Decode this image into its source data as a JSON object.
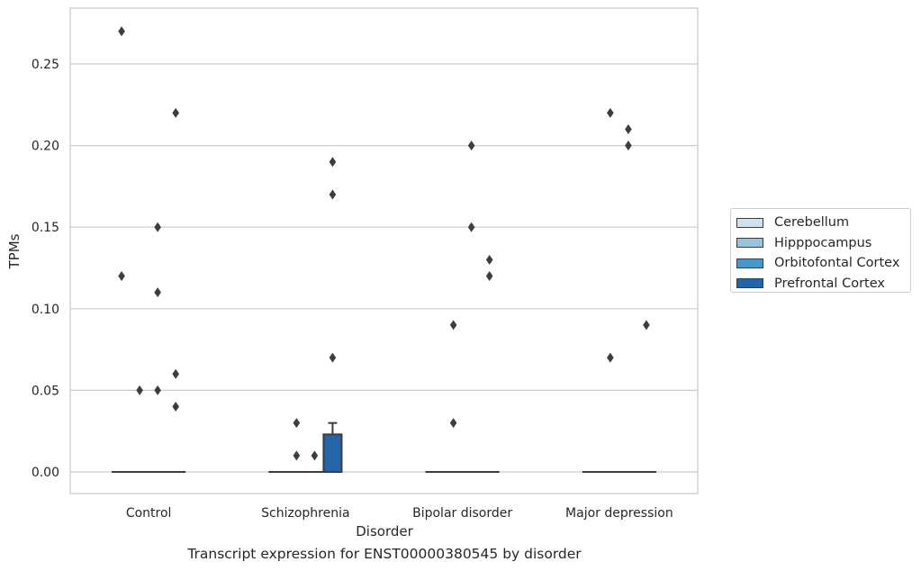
{
  "caption": "Transcript expression for ENST00000380545 by disorder",
  "chart_data": {
    "type": "box",
    "xlabel": "Disorder",
    "ylabel": "TPMs",
    "categories": [
      "Control",
      "Schizophrenia",
      "Bipolar disorder",
      "Major depression"
    ],
    "ylim": [
      -0.0125,
      0.2835
    ],
    "yticks": [
      "0.00",
      "0.05",
      "0.10",
      "0.15",
      "0.20",
      "0.25"
    ],
    "grid": true,
    "legend_position": "right",
    "series": [
      {
        "name": "Cerebellum",
        "color": "#d0e1f2",
        "boxes": [
          {
            "q1": 0,
            "median": 0,
            "q3": 0,
            "whisker_low": 0,
            "whisker_high": 0,
            "outliers": [
              0.27,
              0.12
            ]
          },
          {
            "q1": 0,
            "median": 0,
            "q3": 0,
            "whisker_low": 0,
            "whisker_high": 0,
            "outliers": []
          },
          {
            "q1": 0,
            "median": 0,
            "q3": 0,
            "whisker_low": 0,
            "whisker_high": 0,
            "outliers": []
          },
          {
            "q1": 0,
            "median": 0,
            "q3": 0,
            "whisker_low": 0,
            "whisker_high": 0,
            "outliers": []
          }
        ]
      },
      {
        "name": "Hipppocampus",
        "color": "#94c4df",
        "boxes": [
          {
            "q1": 0,
            "median": 0,
            "q3": 0,
            "whisker_low": 0,
            "whisker_high": 0,
            "outliers": [
              0.05
            ]
          },
          {
            "q1": 0,
            "median": 0,
            "q3": 0,
            "whisker_low": 0,
            "whisker_high": 0,
            "outliers": [
              0.03,
              0.01
            ]
          },
          {
            "q1": 0,
            "median": 0,
            "q3": 0,
            "whisker_low": 0,
            "whisker_high": 0,
            "outliers": [
              0.09,
              0.03
            ]
          },
          {
            "q1": 0,
            "median": 0,
            "q3": 0,
            "whisker_low": 0,
            "whisker_high": 0,
            "outliers": [
              0.22,
              0.07
            ]
          }
        ]
      },
      {
        "name": "Orbitofontal Cortex",
        "color": "#4a98c9",
        "boxes": [
          {
            "q1": 0,
            "median": 0,
            "q3": 0,
            "whisker_low": 0,
            "whisker_high": 0,
            "outliers": [
              0.15,
              0.11,
              0.05
            ]
          },
          {
            "q1": 0,
            "median": 0,
            "q3": 0,
            "whisker_low": 0,
            "whisker_high": 0,
            "outliers": [
              0.01
            ]
          },
          {
            "q1": 0,
            "median": 0,
            "q3": 0,
            "whisker_low": 0,
            "whisker_high": 0,
            "outliers": [
              0.2,
              0.15
            ]
          },
          {
            "q1": 0,
            "median": 0,
            "q3": 0,
            "whisker_low": 0,
            "whisker_high": 0,
            "outliers": [
              0.21,
              0.2
            ]
          }
        ]
      },
      {
        "name": "Prefrontal Cortex",
        "color": "#2464a9",
        "boxes": [
          {
            "q1": 0,
            "median": 0,
            "q3": 0,
            "whisker_low": 0,
            "whisker_high": 0,
            "outliers": [
              0.22,
              0.06,
              0.04
            ]
          },
          {
            "q1": 0,
            "median": 0,
            "q3": 0.023,
            "whisker_low": 0,
            "whisker_high": 0.03,
            "outliers": [
              0.19,
              0.17,
              0.07
            ]
          },
          {
            "q1": 0,
            "median": 0,
            "q3": 0,
            "whisker_low": 0,
            "whisker_high": 0,
            "outliers": [
              0.13,
              0.12
            ]
          },
          {
            "q1": 0,
            "median": 0,
            "q3": 0,
            "whisker_low": 0,
            "whisker_high": 0,
            "outliers": [
              0.09
            ]
          }
        ]
      }
    ]
  }
}
